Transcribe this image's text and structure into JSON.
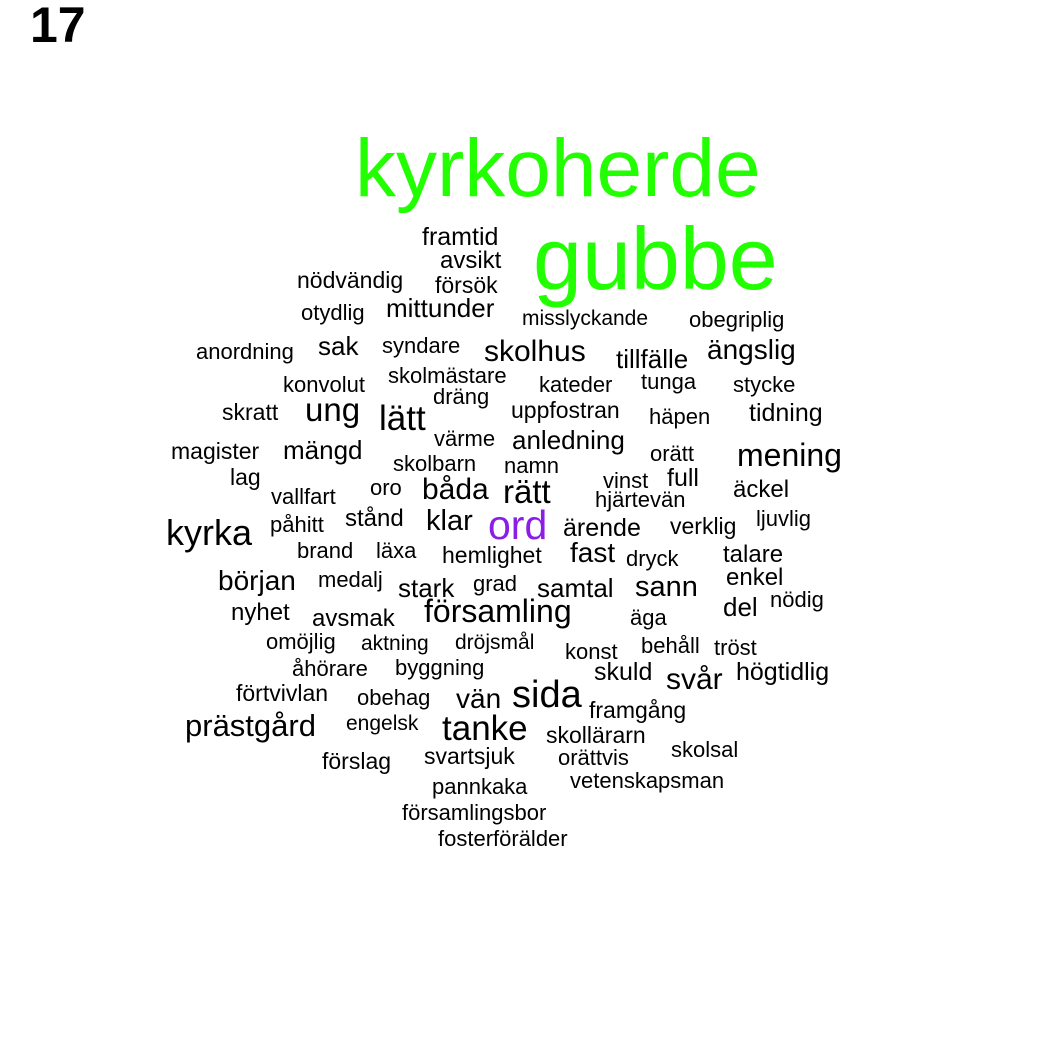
{
  "page_number": "17",
  "colors": {
    "highlight_green": "#22ff00",
    "highlight_purple": "#8a1ee6",
    "default": "#000000"
  },
  "words": [
    {
      "text": "kyrkoherde",
      "color": "#22ff00"
    },
    {
      "text": "gubbe",
      "color": "#22ff00"
    },
    {
      "text": "framtid"
    },
    {
      "text": "avsikt"
    },
    {
      "text": "nödvändig"
    },
    {
      "text": "försök"
    },
    {
      "text": "otydlig"
    },
    {
      "text": "mittunder"
    },
    {
      "text": "misslyckande"
    },
    {
      "text": "obegriplig"
    },
    {
      "text": "anordning"
    },
    {
      "text": "sak"
    },
    {
      "text": "syndare"
    },
    {
      "text": "skolhus"
    },
    {
      "text": "tillfälle"
    },
    {
      "text": "ängslig"
    },
    {
      "text": "konvolut"
    },
    {
      "text": "skolmästare"
    },
    {
      "text": "kateder"
    },
    {
      "text": "tunga"
    },
    {
      "text": "stycke"
    },
    {
      "text": "dräng"
    },
    {
      "text": "skratt"
    },
    {
      "text": "ung"
    },
    {
      "text": "lätt"
    },
    {
      "text": "uppfostran"
    },
    {
      "text": "häpen"
    },
    {
      "text": "tidning"
    },
    {
      "text": "värme"
    },
    {
      "text": "anledning"
    },
    {
      "text": "magister"
    },
    {
      "text": "mängd"
    },
    {
      "text": "orätt"
    },
    {
      "text": "mening"
    },
    {
      "text": "skolbarn"
    },
    {
      "text": "namn"
    },
    {
      "text": "lag"
    },
    {
      "text": "vinst"
    },
    {
      "text": "full"
    },
    {
      "text": "oro"
    },
    {
      "text": "båda"
    },
    {
      "text": "rätt"
    },
    {
      "text": "äckel"
    },
    {
      "text": "vallfart"
    },
    {
      "text": "hjärtevän"
    },
    {
      "text": "stånd"
    },
    {
      "text": "ljuvlig"
    },
    {
      "text": "påhitt"
    },
    {
      "text": "klar"
    },
    {
      "text": "ord",
      "color": "#8a1ee6"
    },
    {
      "text": "ärende"
    },
    {
      "text": "verklig"
    },
    {
      "text": "kyrka"
    },
    {
      "text": "brand"
    },
    {
      "text": "läxa"
    },
    {
      "text": "hemlighet"
    },
    {
      "text": "fast"
    },
    {
      "text": "dryck"
    },
    {
      "text": "talare"
    },
    {
      "text": "medalj"
    },
    {
      "text": "enkel"
    },
    {
      "text": "början"
    },
    {
      "text": "grad"
    },
    {
      "text": "stark"
    },
    {
      "text": "samtal"
    },
    {
      "text": "sann"
    },
    {
      "text": "nödig"
    },
    {
      "text": "nyhet"
    },
    {
      "text": "församling"
    },
    {
      "text": "del"
    },
    {
      "text": "avsmak"
    },
    {
      "text": "äga"
    },
    {
      "text": "omöjlig"
    },
    {
      "text": "aktning"
    },
    {
      "text": "dröjsmål"
    },
    {
      "text": "behåll"
    },
    {
      "text": "tröst"
    },
    {
      "text": "konst"
    },
    {
      "text": "åhörare"
    },
    {
      "text": "byggning"
    },
    {
      "text": "skuld"
    },
    {
      "text": "svår"
    },
    {
      "text": "högtidlig"
    },
    {
      "text": "förtvivlan"
    },
    {
      "text": "sida"
    },
    {
      "text": "obehag"
    },
    {
      "text": "vän"
    },
    {
      "text": "framgång"
    },
    {
      "text": "prästgård"
    },
    {
      "text": "engelsk"
    },
    {
      "text": "tanke"
    },
    {
      "text": "skollärarn"
    },
    {
      "text": "skolsal"
    },
    {
      "text": "svartsjuk"
    },
    {
      "text": "förslag"
    },
    {
      "text": "orättvis"
    },
    {
      "text": "vetenskapsman"
    },
    {
      "text": "pannkaka"
    },
    {
      "text": "församlingsbor"
    },
    {
      "text": "fosterförälder"
    }
  ]
}
